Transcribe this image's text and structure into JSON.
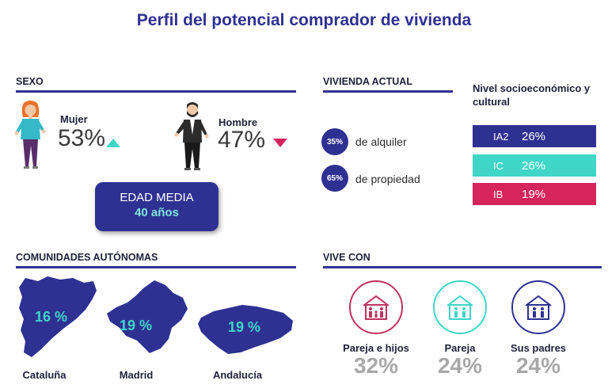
{
  "title": "Perfil del potencial comprador de vivienda",
  "sexo": {
    "heading": "SEXO",
    "mujer": {
      "label": "Mujer",
      "pct": "53%"
    },
    "hombre": {
      "label": "Hombre",
      "pct": "47%"
    },
    "edad_label": "EDAD MEDIA",
    "edad_value": "40 años"
  },
  "vivienda": {
    "heading": "VIVIENDA ACTUAL",
    "items": [
      {
        "pct": "35%",
        "label": "de alquiler"
      },
      {
        "pct": "65%",
        "label": "de propiedad"
      }
    ]
  },
  "nivel": {
    "heading": "Nivel socioeconómico y cultural",
    "bars": [
      {
        "code": "IA2",
        "value": "26%",
        "color": "#2e3192"
      },
      {
        "code": "IC",
        "value": "26%",
        "color": "#3fd6c8"
      },
      {
        "code": "IB",
        "value": "19%",
        "color": "#d6245c"
      }
    ]
  },
  "comunidades": {
    "heading": "COMUNIDADES AUTÓNOMAS",
    "items": [
      {
        "name": "Cataluña",
        "pct": "16 %"
      },
      {
        "name": "Madrid",
        "pct": "19 %"
      },
      {
        "name": "Andalucía",
        "pct": "19 %"
      }
    ]
  },
  "vive_con": {
    "heading": "VIVE CON",
    "items": [
      {
        "label": "Pareja e hijos",
        "pct": "32%",
        "color": "#c0325e"
      },
      {
        "label": "Pareja",
        "pct": "24%",
        "color": "#3fd6c8"
      },
      {
        "label": "Sus padres",
        "pct": "24%",
        "color": "#2e3192"
      }
    ]
  }
}
